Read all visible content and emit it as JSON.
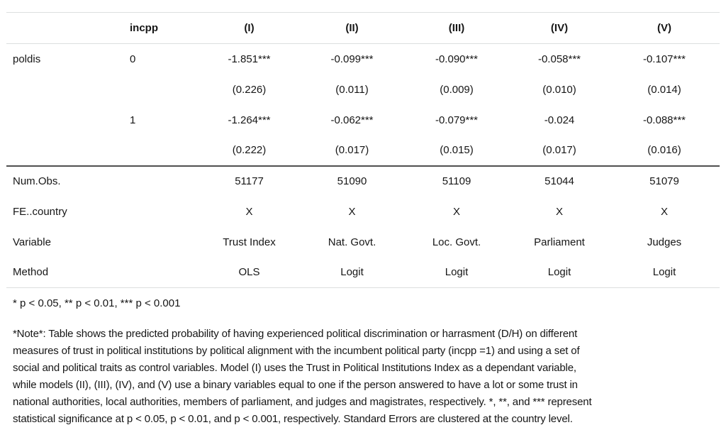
{
  "table": {
    "header": [
      "",
      "incpp",
      "(I)",
      "(II)",
      "(III)",
      "(IV)",
      "(V)"
    ],
    "rows": [
      [
        "poldis",
        "0",
        "-1.851***",
        "-0.099***",
        "-0.090***",
        "-0.058***",
        "-0.107***"
      ],
      [
        "",
        "",
        "(0.226)",
        "(0.011)",
        "(0.009)",
        "(0.010)",
        "(0.014)"
      ],
      [
        "",
        "1",
        "-1.264***",
        "-0.062***",
        "-0.079***",
        "-0.024",
        "-0.088***"
      ],
      [
        "",
        "",
        "(0.222)",
        "(0.017)",
        "(0.015)",
        "(0.017)",
        "(0.016)"
      ],
      [
        "Num.Obs.",
        "",
        "51177",
        "51090",
        "51109",
        "51044",
        "51079"
      ],
      [
        "FE..country",
        "",
        "X",
        "X",
        "X",
        "X",
        "X"
      ],
      [
        "Variable",
        "",
        "Trust Index",
        "Nat. Govt.",
        "Loc. Govt.",
        "Parliament",
        "Judges"
      ],
      [
        "Method",
        "",
        "OLS",
        "Logit",
        "Logit",
        "Logit",
        "Logit"
      ]
    ]
  },
  "footnotes": {
    "significance": "* p < 0.05, ** p < 0.01, *** p < 0.001",
    "note_lines": [
      "*Note*: Table shows the predicted probability of having experienced political discrimination or harrasment (D/H) on different",
      "measures of trust in political institutions by political alignment with the incumbent political party (incpp =1) and using a set of",
      "social and political traits as control variables. Model (I) uses the Trust in Political Institutions Index as a dependant variable,",
      "while models (II), (III), (IV), and (V) use a binary variables equal to one if the person answered to have a lot or some trust in",
      "national authorities, local authorities, members of parliament, and judges and magistrates, respectively. *, **, and *** represent",
      "statistical significance at p < 0.05, p < 0.01, and p < 0.001, respectively. Standard Errors are clustered at the country level."
    ]
  },
  "colors": {
    "text": "#161616",
    "thin_rule": "#dcdfdf",
    "thick_rule": "#4f4f4f",
    "background": "#ffffff"
  }
}
